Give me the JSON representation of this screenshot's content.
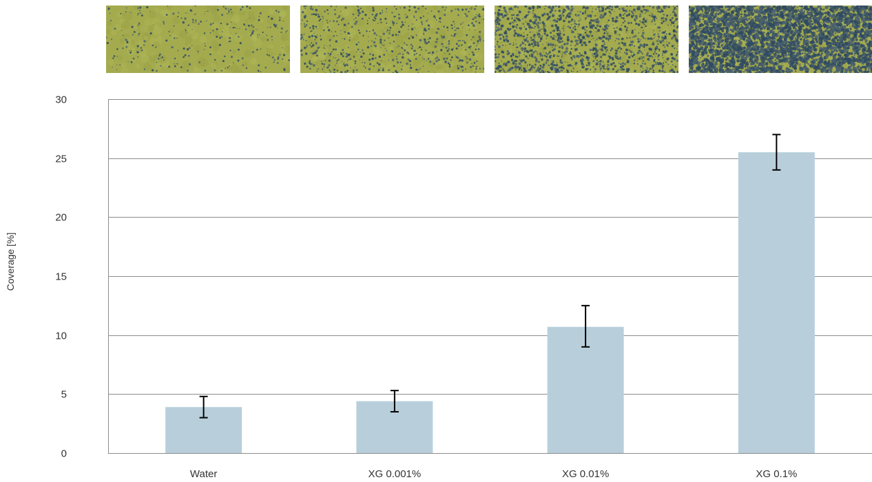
{
  "chart_data": {
    "type": "bar",
    "title": "",
    "xlabel": "",
    "ylabel": "Coverage [%]",
    "ylim": [
      0,
      30
    ],
    "yticks": [
      0,
      5,
      10,
      15,
      20,
      25,
      30
    ],
    "grid": true,
    "categories": [
      "Water",
      "XG 0.001%",
      "XG 0.01%",
      "XG 0.1%"
    ],
    "series": [
      {
        "values": [
          3.9,
          4.4,
          10.7,
          25.5
        ],
        "error_low": [
          3.0,
          3.5,
          9.0,
          24.0
        ],
        "error_high": [
          4.8,
          5.3,
          12.5,
          27.0
        ]
      }
    ],
    "bar_color": "#b8cfdb",
    "error_bar_color": "#000000",
    "grid_color": "#8c8c8c"
  },
  "images": [
    {
      "name": "water-sample-image",
      "dark_fraction": 0.03
    },
    {
      "name": "xg-0001-sample-image",
      "dark_fraction": 0.07
    },
    {
      "name": "xg-001-sample-image",
      "dark_fraction": 0.16
    },
    {
      "name": "xg-01-sample-image",
      "dark_fraction": 0.42
    }
  ]
}
